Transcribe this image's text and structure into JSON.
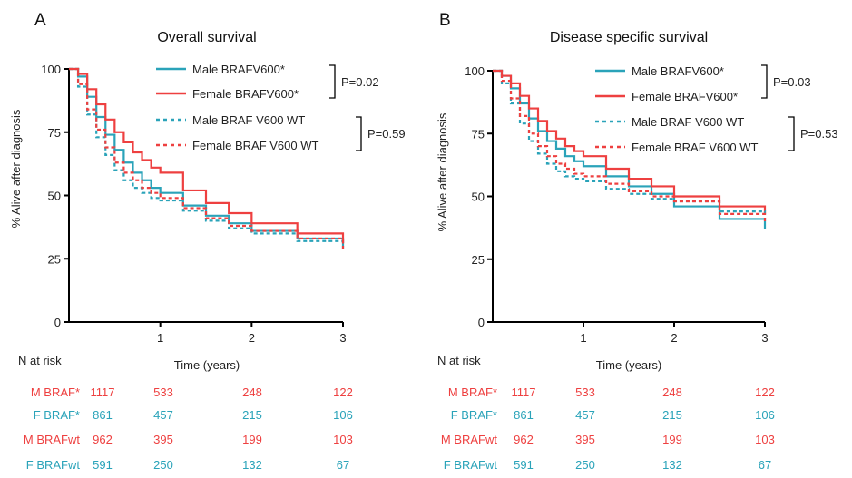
{
  "colors": {
    "male": "#2AA3B9",
    "female": "#EE4040",
    "axis": "#000000",
    "text": "#222222"
  },
  "chart_data": [
    {
      "type": "line",
      "panel_letter": "A",
      "title": "Overall survival",
      "xlabel": "Time (years)",
      "ylabel": "% Alive after diagnosis",
      "xlim": [
        0,
        3
      ],
      "ylim": [
        0,
        100
      ],
      "xticks": [
        "1",
        "2",
        "3"
      ],
      "yticks": [
        "0",
        "25",
        "50",
        "75",
        "100"
      ],
      "grid": false,
      "legend_position": "top-right",
      "series": [
        {
          "name": "Male BRAFV600*",
          "color": "#2AA3B9",
          "dash": "solid",
          "x": [
            0,
            0.1,
            0.2,
            0.3,
            0.4,
            0.5,
            0.6,
            0.7,
            0.8,
            0.9,
            1.0,
            1.25,
            1.5,
            1.75,
            2.0,
            2.5,
            3.0
          ],
          "y": [
            100,
            97,
            89,
            81,
            74,
            68,
            63,
            59,
            56,
            53,
            51,
            46,
            42,
            39,
            36,
            33,
            30
          ]
        },
        {
          "name": "Female BRAFV600*",
          "color": "#EE4040",
          "dash": "solid",
          "x": [
            0,
            0.1,
            0.2,
            0.3,
            0.4,
            0.5,
            0.6,
            0.7,
            0.8,
            0.9,
            1.0,
            1.25,
            1.5,
            1.75,
            2.0,
            2.5,
            3.0
          ],
          "y": [
            100,
            98,
            92,
            86,
            80,
            75,
            71,
            67,
            64,
            61,
            59,
            52,
            47,
            43,
            39,
            35,
            31
          ]
        },
        {
          "name": "Male BRAF V600 WT",
          "color": "#2AA3B9",
          "dash": "dashed",
          "x": [
            0,
            0.1,
            0.2,
            0.3,
            0.4,
            0.5,
            0.6,
            0.7,
            0.8,
            0.9,
            1.0,
            1.25,
            1.5,
            1.75,
            2.0,
            2.5,
            3.0
          ],
          "y": [
            100,
            93,
            82,
            73,
            66,
            60,
            56,
            53,
            51,
            49,
            48,
            44,
            40,
            37,
            35,
            32,
            29
          ]
        },
        {
          "name": "Female BRAF V600 WT",
          "color": "#EE4040",
          "dash": "dashed",
          "x": [
            0,
            0.1,
            0.2,
            0.3,
            0.4,
            0.5,
            0.6,
            0.7,
            0.8,
            0.9,
            1.0,
            1.25,
            1.5,
            1.75,
            2.0,
            2.5,
            3.0
          ],
          "y": [
            100,
            94,
            84,
            76,
            69,
            63,
            59,
            56,
            53,
            51,
            49,
            45,
            41,
            38,
            36,
            33,
            28
          ]
        }
      ],
      "p_values": [
        "P=0.02",
        "P=0.59"
      ],
      "risk_table": {
        "header": "N at risk",
        "rows": [
          {
            "label": "M BRAF*",
            "color": "#EE4040",
            "values": [
              "1117",
              "533",
              "248",
              "122"
            ]
          },
          {
            "label": "F BRAF*",
            "color": "#2AA3B9",
            "values": [
              "861",
              "457",
              "215",
              "106"
            ]
          },
          {
            "label": "M BRAFwt",
            "color": "#EE4040",
            "values": [
              "962",
              "395",
              "199",
              "103"
            ]
          },
          {
            "label": "F BRAFwt",
            "color": "#2AA3B9",
            "values": [
              "591",
              "250",
              "132",
              "67"
            ]
          }
        ]
      }
    },
    {
      "type": "line",
      "panel_letter": "B",
      "title": "Disease specific survival",
      "xlabel": "Time (years)",
      "ylabel": "% Alive after diagnosis",
      "xlim": [
        0,
        3
      ],
      "ylim": [
        0,
        100
      ],
      "xticks": [
        "1",
        "2",
        "3"
      ],
      "yticks": [
        "0",
        "25",
        "50",
        "75",
        "100"
      ],
      "grid": false,
      "legend_position": "top-right",
      "series": [
        {
          "name": "Male BRAFV600*",
          "color": "#2AA3B9",
          "dash": "solid",
          "x": [
            0,
            0.1,
            0.2,
            0.3,
            0.4,
            0.5,
            0.6,
            0.7,
            0.8,
            0.9,
            1.0,
            1.25,
            1.5,
            1.75,
            2.0,
            2.5,
            3.0
          ],
          "y": [
            100,
            98,
            93,
            87,
            81,
            76,
            72,
            69,
            66,
            64,
            62,
            58,
            54,
            51,
            46,
            41,
            37
          ]
        },
        {
          "name": "Female BRAFV600*",
          "color": "#EE4040",
          "dash": "solid",
          "x": [
            0,
            0.1,
            0.2,
            0.3,
            0.4,
            0.5,
            0.6,
            0.7,
            0.8,
            0.9,
            1.0,
            1.25,
            1.5,
            1.75,
            2.0,
            2.5,
            3.0
          ],
          "y": [
            100,
            98,
            95,
            90,
            85,
            80,
            76,
            73,
            70,
            68,
            66,
            61,
            57,
            54,
            50,
            46,
            43
          ]
        },
        {
          "name": "Male BRAF V600 WT",
          "color": "#2AA3B9",
          "dash": "dashed",
          "x": [
            0,
            0.1,
            0.2,
            0.3,
            0.4,
            0.5,
            0.6,
            0.7,
            0.8,
            0.9,
            1.0,
            1.25,
            1.5,
            1.75,
            2.0,
            2.5,
            3.0
          ],
          "y": [
            100,
            95,
            87,
            79,
            72,
            67,
            63,
            60,
            58,
            57,
            56,
            53,
            51,
            49,
            48,
            44,
            41
          ]
        },
        {
          "name": "Female BRAF V600 WT",
          "color": "#EE4040",
          "dash": "dashed",
          "x": [
            0,
            0.1,
            0.2,
            0.3,
            0.4,
            0.5,
            0.6,
            0.7,
            0.8,
            0.9,
            1.0,
            1.25,
            1.5,
            1.75,
            2.0,
            2.5,
            3.0
          ],
          "y": [
            100,
            96,
            89,
            82,
            75,
            70,
            66,
            63,
            61,
            59,
            58,
            55,
            52,
            50,
            48,
            43,
            39
          ]
        }
      ],
      "p_values": [
        "P=0.03",
        "P=0.53"
      ],
      "risk_table": {
        "header": "N at risk",
        "rows": [
          {
            "label": "M BRAF*",
            "color": "#EE4040",
            "values": [
              "1117",
              "533",
              "248",
              "122"
            ]
          },
          {
            "label": "F BRAF*",
            "color": "#2AA3B9",
            "values": [
              "861",
              "457",
              "215",
              "106"
            ]
          },
          {
            "label": "M BRAFwt",
            "color": "#EE4040",
            "values": [
              "962",
              "395",
              "199",
              "103"
            ]
          },
          {
            "label": "F BRAFwt",
            "color": "#2AA3B9",
            "values": [
              "591",
              "250",
              "132",
              "67"
            ]
          }
        ]
      }
    }
  ]
}
